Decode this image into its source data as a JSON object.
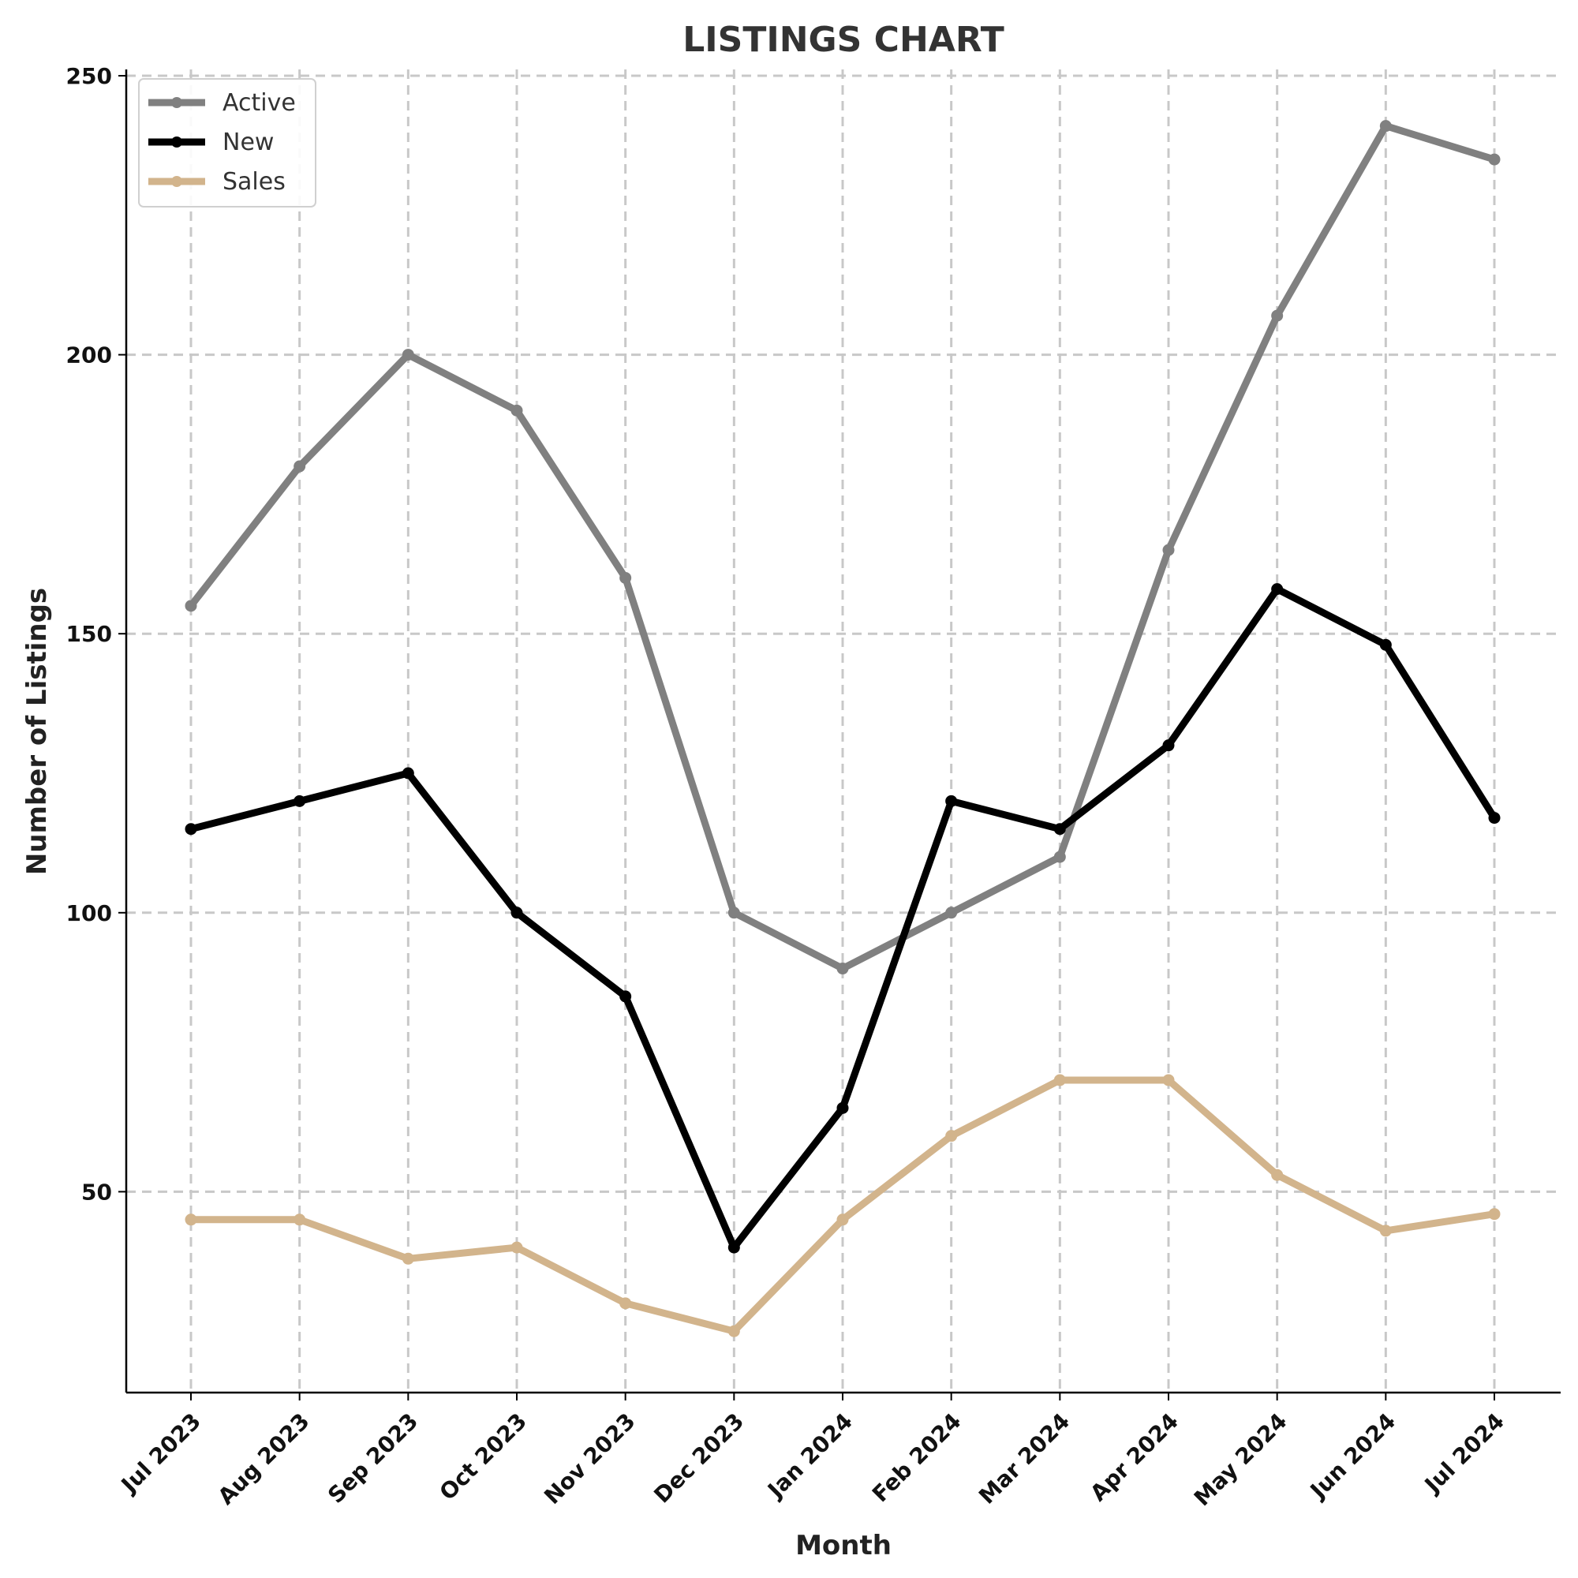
{
  "chart_data": {
    "type": "line",
    "title": "LISTINGS CHART",
    "xlabel": "Month",
    "ylabel": "Number of Listings",
    "categories": [
      "Jul 2023",
      "Aug 2023",
      "Sep 2023",
      "Oct 2023",
      "Nov 2023",
      "Dec 2023",
      "Jan 2024",
      "Feb 2024",
      "Mar 2024",
      "Apr 2024",
      "May 2024",
      "Jun 2024",
      "Jul 2024"
    ],
    "ylim": [
      14,
      250
    ],
    "yticks": [
      50,
      100,
      150,
      200,
      250
    ],
    "grid": true,
    "legend_position": "top-left",
    "series": [
      {
        "name": "Active",
        "color": "#808080",
        "values": [
          155,
          180,
          200,
          190,
          160,
          100,
          90,
          100,
          110,
          165,
          207,
          241,
          235
        ]
      },
      {
        "name": "New",
        "color": "#000000",
        "values": [
          115,
          120,
          125,
          100,
          85,
          40,
          65,
          120,
          115,
          130,
          158,
          148,
          117
        ]
      },
      {
        "name": "Sales",
        "color": "#d2b48c",
        "values": [
          45,
          45,
          38,
          40,
          30,
          25,
          45,
          60,
          70,
          70,
          53,
          43,
          46
        ]
      }
    ]
  }
}
